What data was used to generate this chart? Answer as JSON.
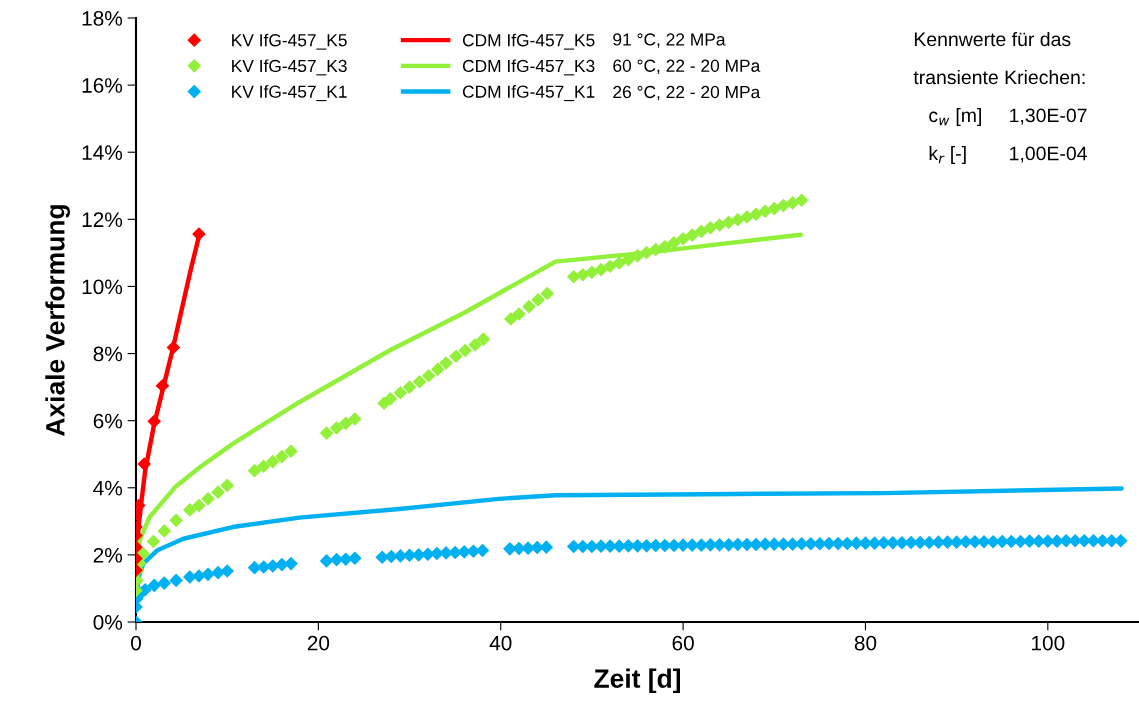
{
  "chart_data": {
    "type": "scatter",
    "xlabel": "Zeit [d]",
    "ylabel": "Axiale Verformung",
    "xlim": [
      0,
      110
    ],
    "xticks": [
      0,
      20,
      40,
      60,
      80,
      100
    ],
    "ylim": [
      0,
      18
    ],
    "yticks": [
      {
        "value": 0,
        "label": "0%"
      },
      {
        "value": 2,
        "label": "2%"
      },
      {
        "value": 4,
        "label": "4%"
      },
      {
        "value": 6,
        "label": "6%"
      },
      {
        "value": 8,
        "label": "8%"
      },
      {
        "value": 10,
        "label": "10%"
      },
      {
        "value": 12,
        "label": "12%"
      },
      {
        "value": 14,
        "label": "14%"
      },
      {
        "value": 16,
        "label": "16%"
      },
      {
        "value": 18,
        "label": "18%"
      }
    ],
    "grid": false,
    "legend": "top left",
    "series": [
      {
        "name": "KV IfG-457_K5",
        "marker": "diamond",
        "color": "#ff0000",
        "x": [
          0,
          0,
          0,
          0,
          0,
          0,
          0.3,
          0.9,
          2.0,
          2.9,
          4.1,
          6.9
        ],
        "values": [
          1.54,
          1.89,
          2.23,
          2.58,
          2.83,
          3.22,
          3.47,
          4.71,
          5.98,
          7.04,
          8.18,
          11.56
        ]
      },
      {
        "name": "KV IfG-457_K3",
        "marker": "diamond",
        "color": "#92f03a",
        "x": [
          0,
          0.1,
          0.2,
          0.4,
          0.8,
          1.9,
          3.1,
          4.4,
          5.9,
          6.9,
          7.9,
          9.0,
          10.0,
          13.0,
          14.0,
          15.0,
          16.0,
          17.0,
          20.9,
          22.0,
          23.0,
          24.0,
          27.2,
          27.9,
          29.0,
          30.0,
          31.1,
          32.1,
          33.1,
          34.0,
          35.1,
          36.1,
          37.2,
          38.1,
          41.1,
          42.0,
          43.1,
          44.1,
          45.1,
          48,
          49,
          50,
          51,
          52,
          53,
          54,
          55,
          56,
          57,
          58,
          59,
          60,
          61,
          62,
          63,
          64,
          65,
          66,
          67,
          68,
          69,
          70,
          71,
          72,
          73
        ],
        "values": [
          0.94,
          1.24,
          1.54,
          1.75,
          2.03,
          2.4,
          2.71,
          3.03,
          3.34,
          3.47,
          3.67,
          3.87,
          4.07,
          4.51,
          4.64,
          4.78,
          4.93,
          5.09,
          5.63,
          5.78,
          5.92,
          6.05,
          6.52,
          6.65,
          6.83,
          7.0,
          7.16,
          7.34,
          7.53,
          7.72,
          7.92,
          8.09,
          8.26,
          8.43,
          9.03,
          9.18,
          9.4,
          9.6,
          9.79,
          10.29,
          10.35,
          10.42,
          10.5,
          10.6,
          10.7,
          10.8,
          10.91,
          11.01,
          11.1,
          11.18,
          11.3,
          11.42,
          11.53,
          11.64,
          11.75,
          11.83,
          11.91,
          11.99,
          12.07,
          12.15,
          12.24,
          12.32,
          12.41,
          12.49,
          12.57
        ]
      },
      {
        "name": "KV IfG-457_K1",
        "marker": "diamond",
        "color": "#00b0f0",
        "x": [
          0,
          0,
          0.1,
          0.5,
          1.0,
          2.0,
          3.1,
          4.4,
          5.9,
          6.9,
          7.9,
          9.0,
          10.0,
          13.0,
          14,
          15,
          16,
          17,
          20.9,
          22,
          23,
          24,
          27,
          28,
          29,
          30,
          31,
          32,
          33,
          34,
          35,
          36,
          37,
          38,
          41,
          42,
          43,
          44,
          45,
          48,
          49,
          50,
          51,
          52,
          53,
          54,
          55,
          56,
          57,
          58,
          59,
          60,
          61,
          62,
          63,
          64,
          65,
          66,
          67,
          68,
          69,
          70,
          71,
          72,
          73,
          74,
          75,
          76,
          77,
          78,
          79,
          80,
          81,
          82,
          83,
          84,
          85,
          86,
          87,
          88,
          89,
          90,
          91,
          92,
          93,
          94,
          95,
          96,
          97,
          98,
          99,
          100,
          101,
          102,
          103,
          104,
          105,
          106,
          107,
          108
        ],
        "values": [
          0,
          0.45,
          0.7,
          0.85,
          0.96,
          1.09,
          1.16,
          1.24,
          1.34,
          1.37,
          1.42,
          1.47,
          1.52,
          1.62,
          1.64,
          1.67,
          1.71,
          1.74,
          1.82,
          1.86,
          1.87,
          1.9,
          1.93,
          1.95,
          1.97,
          1.99,
          2.0,
          2.02,
          2.04,
          2.06,
          2.07,
          2.09,
          2.11,
          2.13,
          2.18,
          2.19,
          2.2,
          2.22,
          2.23,
          2.25,
          2.25,
          2.25,
          2.26,
          2.26,
          2.26,
          2.27,
          2.27,
          2.27,
          2.28,
          2.28,
          2.28,
          2.29,
          2.29,
          2.29,
          2.3,
          2.3,
          2.3,
          2.31,
          2.31,
          2.31,
          2.32,
          2.32,
          2.32,
          2.32,
          2.33,
          2.33,
          2.33,
          2.34,
          2.34,
          2.34,
          2.35,
          2.35,
          2.35,
          2.36,
          2.36,
          2.36,
          2.37,
          2.37,
          2.37,
          2.38,
          2.38,
          2.38,
          2.39,
          2.39,
          2.39,
          2.39,
          2.4,
          2.4,
          2.4,
          2.41,
          2.41,
          2.41,
          2.41,
          2.42,
          2.42,
          2.42,
          2.42,
          2.42,
          2.42,
          2.42
        ]
      },
      {
        "name": "CDM IfG-457_K5",
        "type": "line",
        "color": "#ff0000",
        "x": [
          0,
          0.1,
          0.3,
          0.6,
          1.0,
          2.0,
          3.0,
          4.0,
          5.0,
          6.0,
          7.0
        ],
        "values": [
          1.2,
          2.2,
          2.9,
          3.6,
          4.5,
          5.9,
          7.0,
          8.1,
          9.3,
          10.5,
          11.6
        ]
      },
      {
        "name": "CDM IfG-457_K3",
        "type": "line",
        "color": "#92f03a",
        "x": [
          0,
          0.4,
          1.5,
          4.3,
          7.0,
          10.6,
          17.9,
          27.8,
          36.1,
          46.0,
          55.8,
          72.9
        ],
        "values": [
          1.0,
          2.43,
          3.13,
          4.02,
          4.61,
          5.31,
          6.55,
          8.09,
          9.23,
          10.74,
          11.0,
          11.54
        ]
      },
      {
        "name": "CDM IfG-457_K1",
        "type": "line",
        "color": "#00b0f0",
        "x": [
          0,
          0.3,
          0.8,
          2.3,
          5.2,
          10.6,
          17.9,
          28.9,
          39.8,
          46.0,
          62.5,
          82,
          108.1
        ],
        "values": [
          0.6,
          1.34,
          1.74,
          2.13,
          2.48,
          2.83,
          3.11,
          3.37,
          3.67,
          3.78,
          3.81,
          3.84,
          3.98
        ]
      }
    ],
    "annotations": [
      "91 °C, 22 MPa",
      "60 °C, 22 - 20 MPa",
      "26 °C, 22 - 20 MPa",
      "Kennwerte für das",
      "transiente Kriechen:",
      "c$_{w}$ [m]",
      "1,30E-07",
      "k$_{r}$ [-]",
      "1,00E-04"
    ]
  }
}
